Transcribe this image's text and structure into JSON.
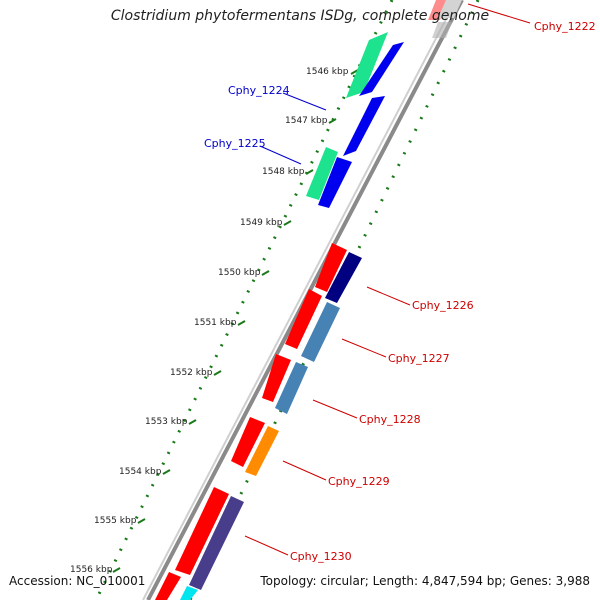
{
  "title": "Clostridium phytofermentans ISDg, complete genome",
  "footer": {
    "accession": "Accession: NC_010001",
    "summary": "Topology: circular; Length: 4,847,594 bp; Genes: 3,988"
  },
  "colors": {
    "backbone": "#8a8a8a",
    "tick": "#1a7a1a",
    "gene_red": "#ff0000",
    "gene_green": "#1de38e",
    "gene_blue": "#0000ee",
    "gene_navy": "#000080",
    "gene_steel": "#4682b4",
    "gene_orange": "#ff8c00",
    "gene_slate": "#483d8b",
    "gene_cyan": "#00e5ee",
    "label_blue": "#0000cc",
    "label_red": "#cc0000"
  },
  "scale_labels": [
    "1546 kbp",
    "1547 kbp",
    "1548 kbp",
    "1549 kbp",
    "1550 kbp",
    "1551 kbp",
    "1552 kbp",
    "1553 kbp",
    "1554 kbp",
    "1555 kbp",
    "1556 kbp"
  ],
  "gene_labels": [
    "Cphy_1222",
    "Cphy_1224",
    "Cphy_1225",
    "Cphy_1226",
    "Cphy_1227",
    "Cphy_1228",
    "Cphy_1229",
    "Cphy_1230"
  ]
}
